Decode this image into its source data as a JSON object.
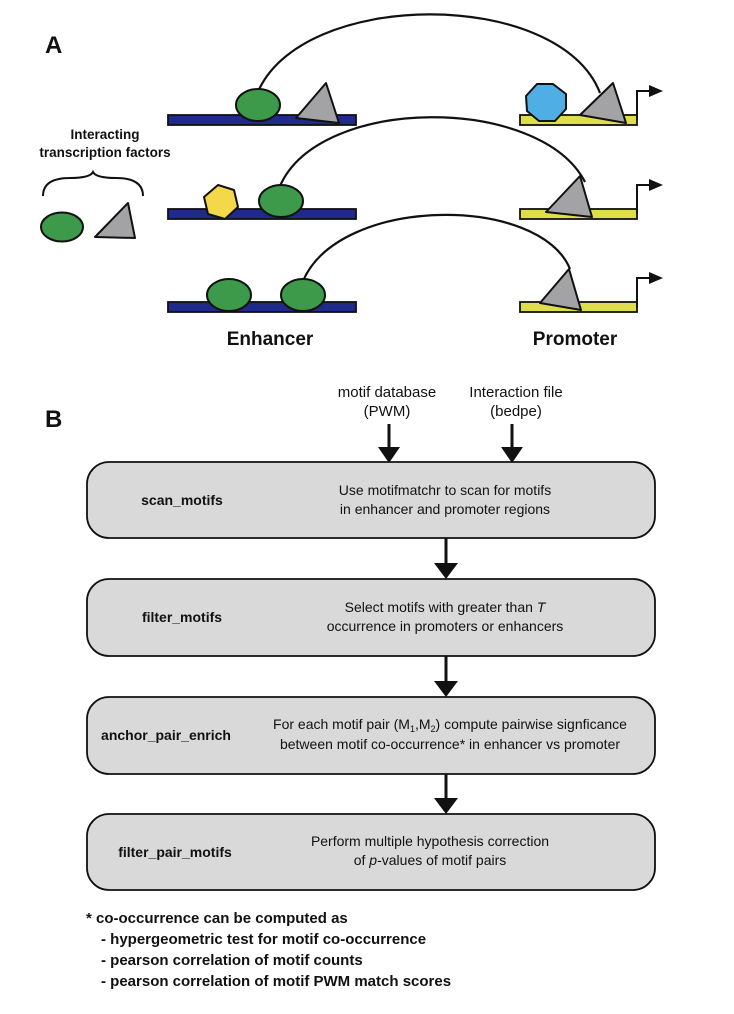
{
  "panel_a": {
    "letter": "A",
    "tf_label_line1": "Interacting",
    "tf_label_line2": "transcription factors",
    "enhancer_label": "Enhancer",
    "promoter_label": "Promoter"
  },
  "panel_b": {
    "letter": "B",
    "inputs": [
      {
        "line1": "motif database",
        "line2": "(PWM)"
      },
      {
        "line1": "Interaction file",
        "line2": "(bedpe)"
      }
    ],
    "steps": [
      {
        "name": "scan_motifs",
        "desc1": "Use motifmatchr to scan for motifs",
        "desc2": "in enhancer and promoter regions"
      },
      {
        "name": "filter_motifs",
        "desc1": "Select motifs with greater than T",
        "desc2": "occurrence in promoters or enhancers"
      },
      {
        "name": "anchor_pair_enrich",
        "desc1": "For each motif pair (M1,M2) compute pairwise signficance",
        "desc2": "between motif co-occurrence* in enhancer vs promoter"
      },
      {
        "name": "filter_pair_motifs",
        "desc1": "Perform multiple hypothesis correction",
        "desc2": "of p-values of motif pairs"
      }
    ],
    "note": {
      "title": "* co-occurrence can be computed as",
      "items": [
        "- hypergeometric test for motif co-occurrence",
        "- pearson correlation of motif counts",
        "- pearson correlation of motif PWM match scores"
      ]
    }
  },
  "colors": {
    "enhancer_bar": "#1f2a8c",
    "promoter_bar": "#dede4a",
    "green_tf": "#3c9a4a",
    "gray_tf": "#a3a3a6",
    "blue_tf": "#4faee3",
    "yellow_tf": "#f4d84a",
    "step_box": "#d9d9d9"
  }
}
